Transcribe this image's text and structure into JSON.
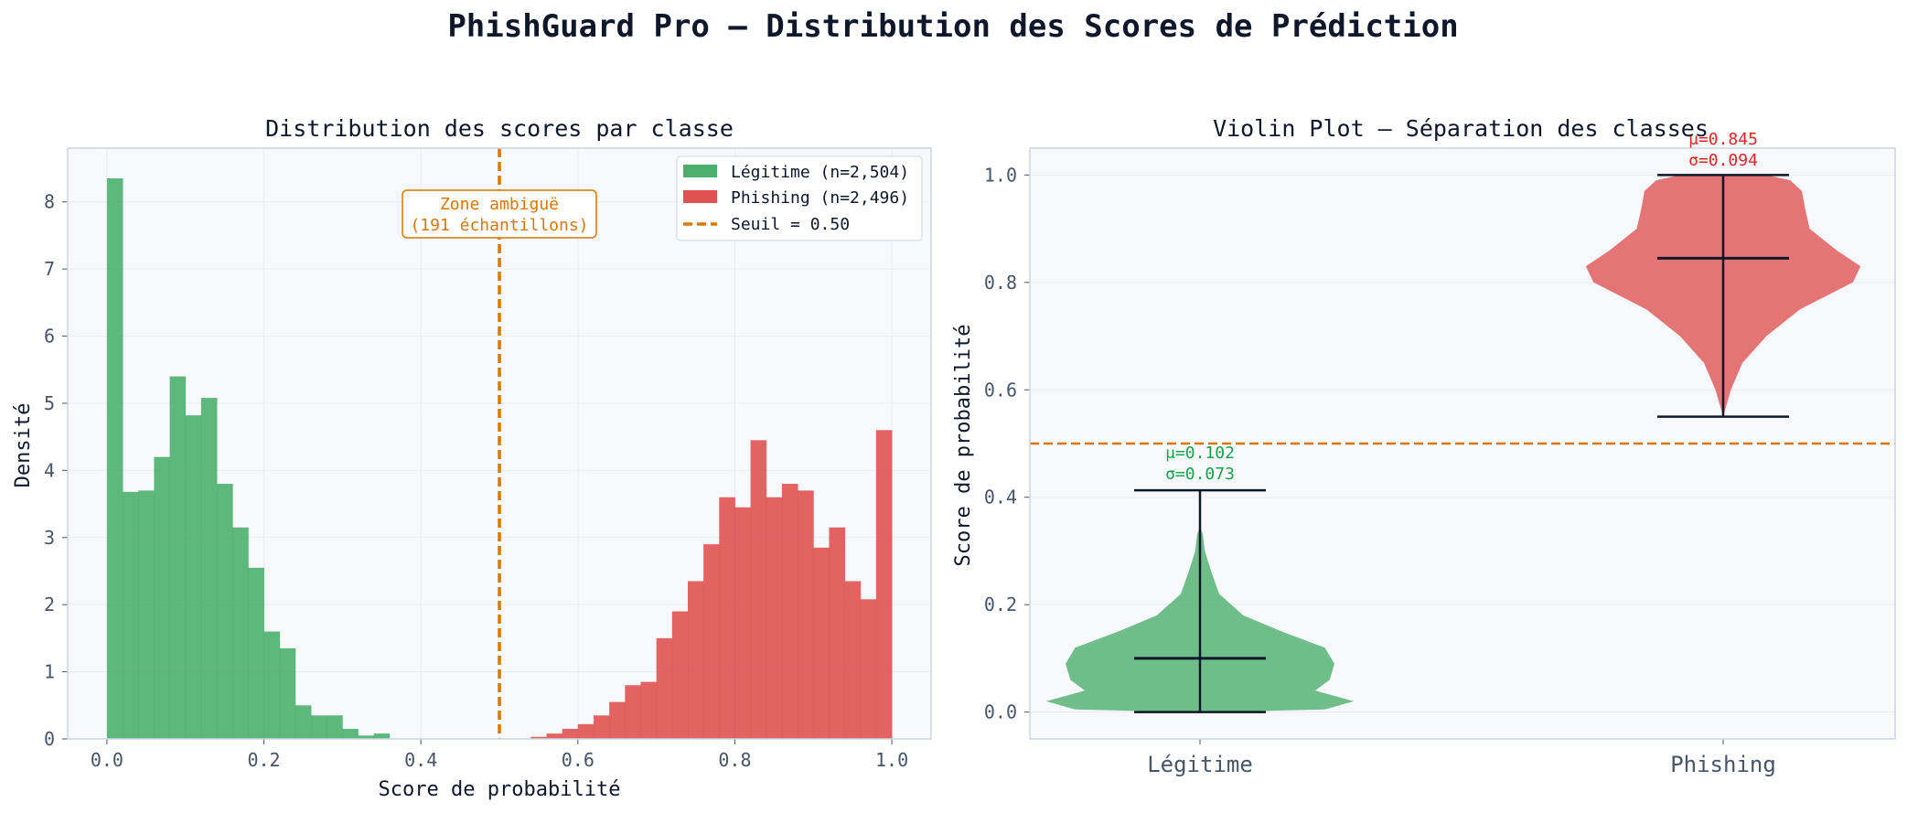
{
  "title": "PhishGuard Pro — Distribution des Scores de Prédiction",
  "colors": {
    "legit": "#4caf6d",
    "phish": "#e05252",
    "threshold": "#d97706",
    "plot_bg": "#f7f9fc",
    "axis": "#cbd5e1",
    "grid": "#e8edf3",
    "text": "#0f172a",
    "tick": "#475569",
    "stat_legit": "#16a34a",
    "stat_phish": "#dc2626"
  },
  "chart_data": [
    {
      "type": "bar",
      "subtype": "histogram",
      "title": "Distribution des scores par classe",
      "xlabel": "Score de probabilité",
      "ylabel": "Densité",
      "xlim": [
        -0.05,
        1.05
      ],
      "ylim": [
        0,
        8.8
      ],
      "xticks": [
        "0.0",
        "0.2",
        "0.4",
        "0.6",
        "0.8",
        "1.0"
      ],
      "yticks": [
        "0",
        "1",
        "2",
        "3",
        "4",
        "5",
        "6",
        "7",
        "8"
      ],
      "grid": true,
      "legend_position": "top-right",
      "bin_width": 0.02,
      "series": [
        {
          "name": "Légitime (n=2,504)",
          "bin_start": 0.0,
          "values": [
            8.35,
            3.68,
            3.7,
            4.2,
            5.4,
            4.82,
            5.08,
            3.8,
            3.15,
            2.55,
            1.6,
            1.35,
            0.5,
            0.35,
            0.35,
            0.15,
            0.05,
            0.08
          ]
        },
        {
          "name": "Phishing (n=2,496)",
          "bin_start": 0.54,
          "values": [
            0.03,
            0.08,
            0.15,
            0.22,
            0.35,
            0.55,
            0.8,
            0.85,
            1.5,
            1.9,
            2.35,
            2.9,
            3.6,
            3.45,
            4.45,
            3.6,
            3.8,
            3.7,
            2.85,
            3.15,
            2.35,
            2.08,
            4.6
          ]
        }
      ],
      "threshold": {
        "label": "Seuil = 0.50",
        "value": 0.5
      },
      "annotation": {
        "line1": "Zone ambiguë",
        "line2": "(191 échantillons)"
      }
    },
    {
      "type": "violin",
      "title": "Violin Plot — Séparation des classes",
      "ylabel": "Score de probabilité",
      "ylim": [
        -0.05,
        1.05
      ],
      "yticks": [
        "0.0",
        "0.2",
        "0.4",
        "0.6",
        "0.8",
        "1.0"
      ],
      "categories": [
        "Légitime",
        "Phishing"
      ],
      "threshold_value": 0.5,
      "series": [
        {
          "min": 0.0,
          "max": 0.413,
          "median": 0.1,
          "mean_label": "μ=0.102",
          "std_label": "σ=0.073"
        },
        {
          "min": 0.55,
          "max": 1.0,
          "median": 0.845,
          "mean_label": "μ=0.845",
          "std_label": "σ=0.094"
        }
      ]
    }
  ]
}
